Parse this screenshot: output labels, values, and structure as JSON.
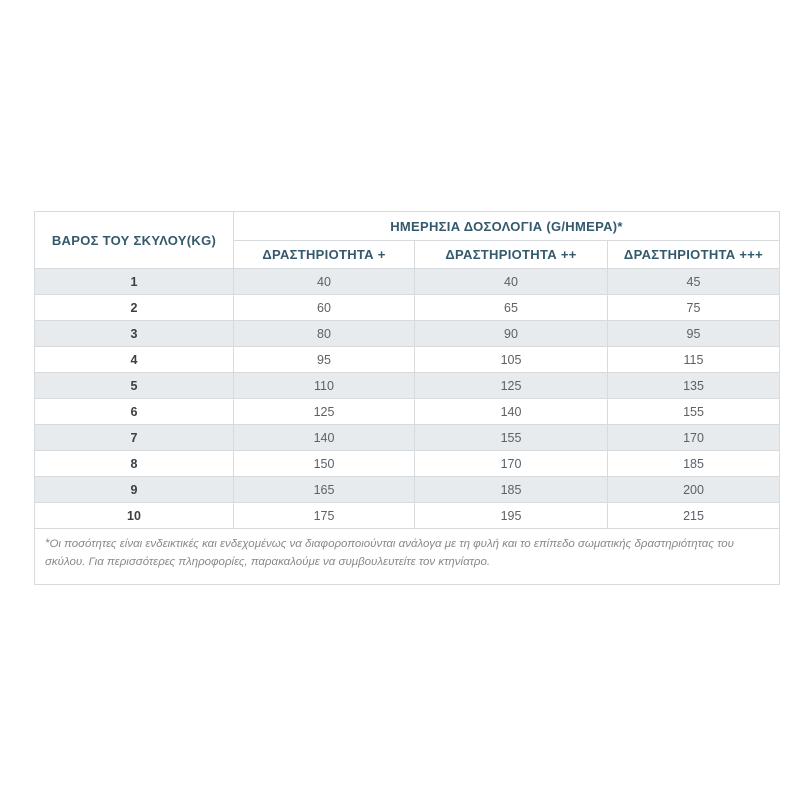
{
  "table": {
    "weight_header": "ΒΑΡΟΣ ΤΟΥ ΣΚΥΛΟΥ(KG)",
    "dosage_header": "ΗΜΕΡΗΣΙΑ ΔΟΣΟΛΟΓΙΑ (G/ΗΜΕΡΑ)*",
    "activity_headers": [
      "ΔΡΑΣΤΗΡΙΟΤΗΤΑ +",
      "ΔΡΑΣΤΗΡΙΟΤΗΤΑ ++",
      "ΔΡΑΣΤΗΡΙΟΤΗΤΑ +++"
    ],
    "rows": [
      {
        "weight": "1",
        "values": [
          "40",
          "40",
          "45"
        ]
      },
      {
        "weight": "2",
        "values": [
          "60",
          "65",
          "75"
        ]
      },
      {
        "weight": "3",
        "values": [
          "80",
          "90",
          "95"
        ]
      },
      {
        "weight": "4",
        "values": [
          "95",
          "105",
          "115"
        ]
      },
      {
        "weight": "5",
        "values": [
          "110",
          "125",
          "135"
        ]
      },
      {
        "weight": "6",
        "values": [
          "125",
          "140",
          "155"
        ]
      },
      {
        "weight": "7",
        "values": [
          "140",
          "155",
          "170"
        ]
      },
      {
        "weight": "8",
        "values": [
          "150",
          "170",
          "185"
        ]
      },
      {
        "weight": "9",
        "values": [
          "165",
          "185",
          "200"
        ]
      },
      {
        "weight": "10",
        "values": [
          "175",
          "195",
          "215"
        ]
      }
    ],
    "footnote": "*Οι ποσότητες είναι ενδεικτικές και ενδεχομένως να διαφοροποιούνται ανάλογα με τη φυλή και το επίπεδο σωματικής δραστηριότητας του σκύλου. Για περισσότερες πληροφορίες, παρακαλούμε να συμβουλευτείτε τον κτηνίατρο."
  },
  "colors": {
    "header_text": "#34596c",
    "cell_text": "#5b6167",
    "weight_text": "#3b3f43",
    "stripe_bg": "#e8ebed",
    "cell_border": "#d8dbdd",
    "outer_border": "#c2c6c8",
    "footnote_text": "#85898c",
    "page_background": "#ffffff"
  },
  "chart_data": {
    "type": "table",
    "title": "ΗΜΕΡΗΣΙΑ ΔΟΣΟΛΟΓΙΑ (G/ΗΜΕΡΑ)*",
    "columns": [
      "ΒΑΡΟΣ ΤΟΥ ΣΚΥΛΟΥ(KG)",
      "ΔΡΑΣΤΗΡΙΟΤΗΤΑ +",
      "ΔΡΑΣΤΗΡΙΟΤΗΤΑ ++",
      "ΔΡΑΣΤΗΡΙΟΤΗΤΑ +++"
    ],
    "rows": [
      [
        1,
        40,
        40,
        45
      ],
      [
        2,
        60,
        65,
        75
      ],
      [
        3,
        80,
        90,
        95
      ],
      [
        4,
        95,
        105,
        115
      ],
      [
        5,
        110,
        125,
        135
      ],
      [
        6,
        125,
        140,
        155
      ],
      [
        7,
        140,
        155,
        170
      ],
      [
        8,
        150,
        170,
        185
      ],
      [
        9,
        165,
        185,
        200
      ],
      [
        10,
        175,
        195,
        215
      ]
    ],
    "footnote": "*Οι ποσότητες είναι ενδεικτικές και ενδεχομένως να διαφοροποιούνται ανάλογα με τη φυλή και το επίπεδο σωματικής δραστηριότητας του σκύλου. Για περισσότερες πληροφορίες, παρακαλούμε να συμβουλευτείτε τον κτηνίατρο."
  }
}
